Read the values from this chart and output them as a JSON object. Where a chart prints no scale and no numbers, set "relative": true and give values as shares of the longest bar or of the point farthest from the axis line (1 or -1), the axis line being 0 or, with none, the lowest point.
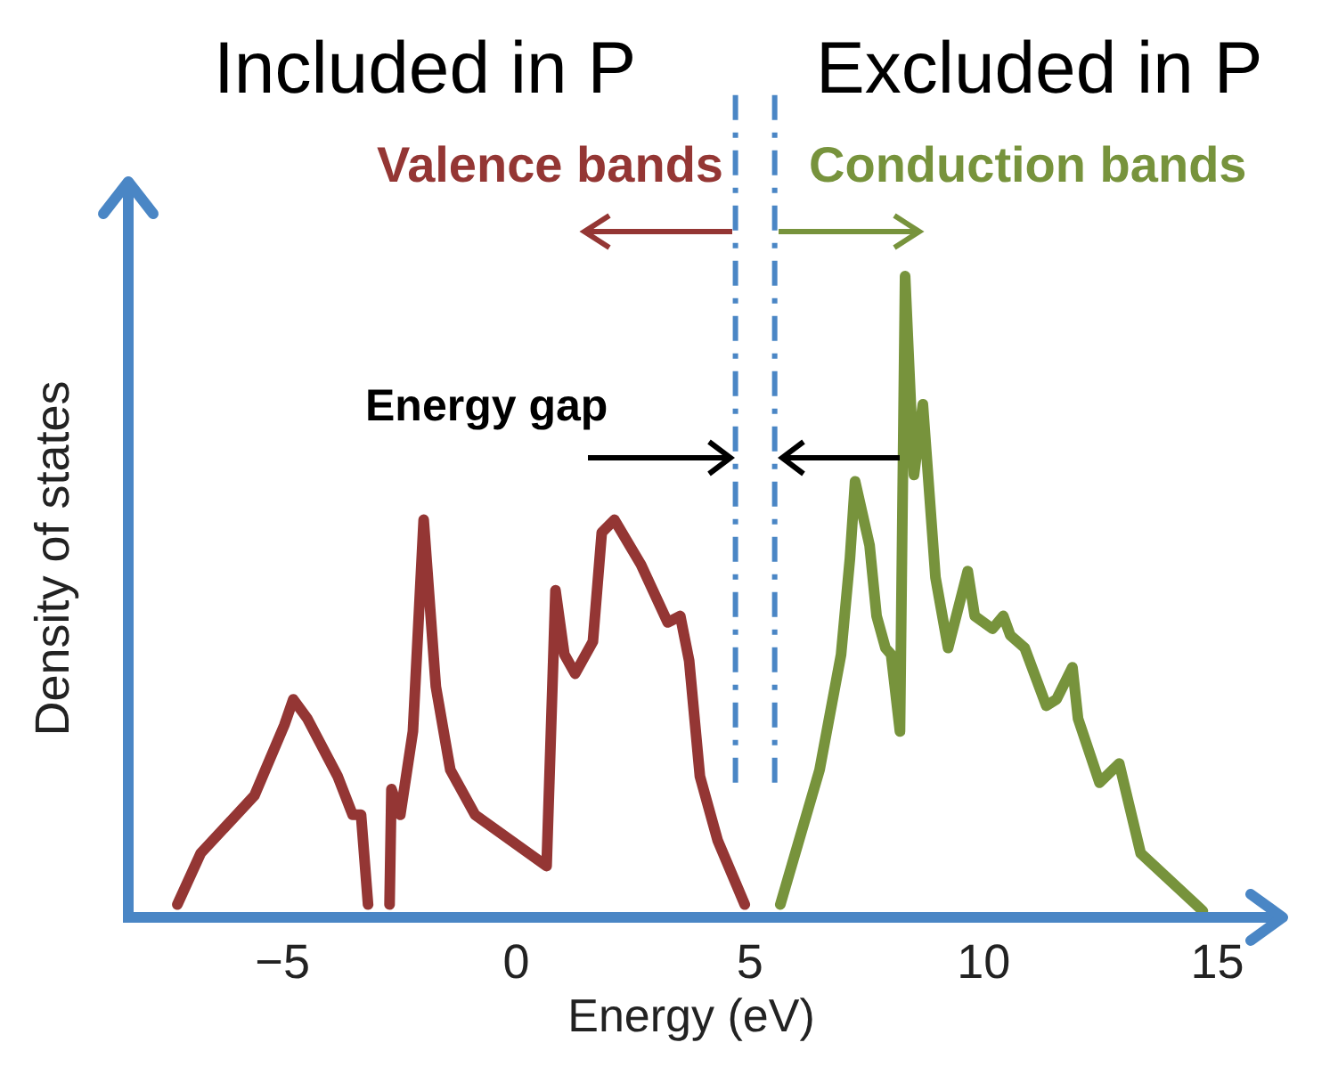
{
  "chart_data": {
    "type": "line",
    "relative": true,
    "xlabel": "Energy (eV)",
    "ylabel": "Density of states",
    "xlim": [
      -8.3,
      16.4
    ],
    "xticks": [
      {
        "value": -5,
        "label": "−5"
      },
      0,
      5,
      10,
      15
    ],
    "annotations": [
      "Included in P",
      "Excluded in P",
      "Valence bands",
      "Conduction bands",
      "Energy gap"
    ],
    "ref_lines": [
      {
        "axis": "x",
        "value": 4.69,
        "color": "#4a86c5",
        "line_style": "dashed"
      },
      {
        "axis": "x",
        "value": 5.53,
        "color": "#4a86c5",
        "line_style": "dashed"
      }
    ],
    "series": [
      {
        "color": "#943634",
        "x": [
          -7.25,
          -6.75,
          -5.6,
          -4.96,
          -4.77,
          -4.47,
          -3.82,
          -3.5,
          -3.32,
          -3.17,
          -2.9,
          -2.71,
          -2.67,
          -2.48,
          -2.21,
          -1.98,
          -1.72,
          -1.41,
          -0.88,
          0.65,
          0.84,
          1.03,
          1.26,
          1.64,
          1.83,
          2.1,
          2.67,
          3.24,
          3.51,
          3.7,
          3.93,
          4.31,
          4.89
        ],
        "values": [
          0.02,
          0.1,
          0.19,
          0.3,
          0.34,
          0.31,
          0.22,
          0.16,
          0.16,
          0.02,
          null,
          0.02,
          0.2,
          0.16,
          0.29,
          0.62,
          0.36,
          0.23,
          0.16,
          0.08,
          0.51,
          0.41,
          0.38,
          0.43,
          0.6,
          0.62,
          0.55,
          0.46,
          0.47,
          0.4,
          0.22,
          0.12,
          0.02
        ]
      },
      {
        "color": "#77933c",
        "x": [
          5.65,
          6.49,
          6.95,
          7.14,
          7.25,
          7.56,
          7.71,
          7.9,
          8.02,
          8.21,
          8.32,
          8.51,
          8.7,
          8.97,
          9.24,
          9.66,
          9.81,
          10.19,
          10.42,
          10.57,
          10.88,
          11.34,
          11.56,
          11.9,
          12.02,
          12.48,
          12.9,
          13.36,
          14.69
        ],
        "values": [
          0.02,
          0.23,
          0.41,
          0.56,
          0.68,
          0.58,
          0.47,
          0.42,
          0.41,
          0.29,
          1,
          0.69,
          0.8,
          0.53,
          0.42,
          0.54,
          0.47,
          0.45,
          0.47,
          0.44,
          0.42,
          0.33,
          0.34,
          0.39,
          0.31,
          0.21,
          0.24,
          0.1,
          0.01
        ]
      }
    ]
  }
}
